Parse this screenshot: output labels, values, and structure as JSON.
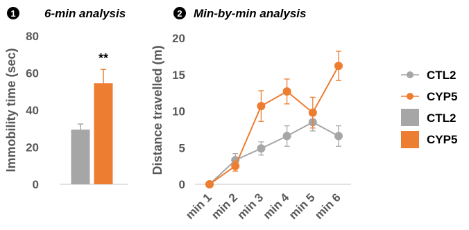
{
  "colors": {
    "ctl": "#a6a6a6",
    "cyp": "#ed7d31",
    "axis": "#d9d9d9",
    "text": "#595959"
  },
  "chart_data": [
    {
      "type": "bar",
      "panel_number": "1",
      "title": "6-min analysis",
      "ylabel": "Immobility time (sec)",
      "ylim": [
        0,
        80
      ],
      "yticks": [
        "0",
        "20",
        "40",
        "60",
        "80"
      ],
      "categories": [
        "CTL2",
        "CYP5"
      ],
      "values": [
        29.5,
        54.5
      ],
      "errors": [
        3,
        7.5
      ],
      "significance": "**",
      "grid": false
    },
    {
      "type": "line",
      "panel_number": "2",
      "title": "Min-by-min analysis",
      "ylabel": "Distance travelled (m)",
      "ylim": [
        0,
        20
      ],
      "yticks": [
        "0",
        "5",
        "10",
        "15",
        "20"
      ],
      "x": [
        "min 1",
        "min 2",
        "min 3",
        "min 4",
        "min 5",
        "min 6"
      ],
      "series": [
        {
          "name": "CTL2",
          "values": [
            0,
            3.3,
            4.9,
            6.6,
            8.5,
            6.6
          ],
          "errors": [
            0,
            0.9,
            0.9,
            1.4,
            1.2,
            1.4
          ]
        },
        {
          "name": "CYP5",
          "values": [
            0,
            2.5,
            10.7,
            12.7,
            9.8,
            16.2
          ],
          "errors": [
            0,
            0.7,
            2.1,
            1.7,
            2.1,
            2.0
          ]
        }
      ],
      "grid": false
    }
  ],
  "legend": {
    "placement": "right",
    "entries": [
      {
        "label": "CTL2",
        "kind": "line",
        "color": "#a6a6a6"
      },
      {
        "label": "CYP5",
        "kind": "line",
        "color": "#ed7d31"
      },
      {
        "label": "CTL2",
        "kind": "bar",
        "color": "#a6a6a6"
      },
      {
        "label": "CYP5",
        "kind": "bar",
        "color": "#ed7d31"
      }
    ]
  }
}
